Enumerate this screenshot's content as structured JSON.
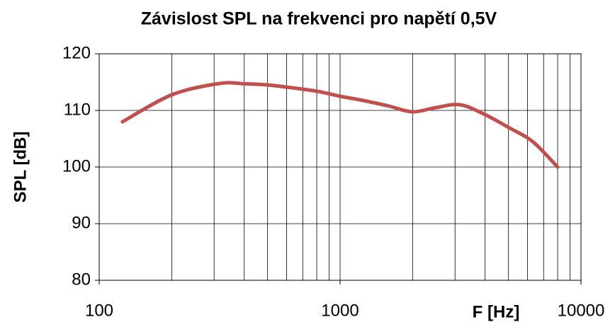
{
  "chart_data": {
    "type": "line",
    "title": "Závislost SPL na frekvenci pro napětí 0,5V",
    "xlabel": "F [Hz]",
    "ylabel": "SPL [dB]",
    "x": [
      125,
      200,
      315,
      400,
      500,
      630,
      800,
      1000,
      1250,
      1600,
      2000,
      2500,
      3150,
      4000,
      5000,
      6300,
      8000
    ],
    "series": [
      {
        "name": "SPL",
        "color": "#c0504d",
        "values": [
          108,
          112.75,
          114.75,
          114.7,
          114.5,
          114,
          113.4,
          112.5,
          111.75,
          110.75,
          109.75,
          110.5,
          111,
          109.25,
          107,
          104.5,
          100
        ]
      }
    ],
    "xlim": [
      100,
      10000
    ],
    "xticks": [
      100,
      1000,
      10000
    ],
    "xscale": "log",
    "ylim": [
      80,
      120
    ],
    "yticks": [
      80,
      90,
      100,
      110,
      120
    ],
    "grid": true,
    "legend": false
  }
}
